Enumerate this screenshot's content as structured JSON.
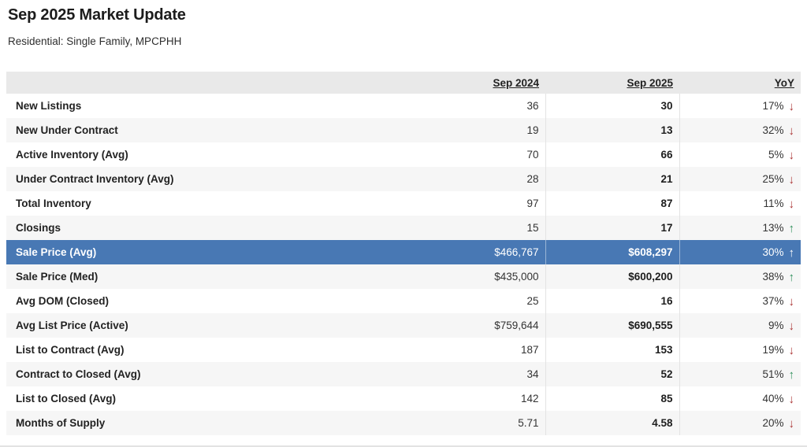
{
  "page": {
    "title": "Sep 2025 Market Update",
    "subtitle": "Residential: Single Family, MPCPHH"
  },
  "icons": {
    "up": "↑",
    "down": "↓"
  },
  "colors": {
    "highlight_row": "#4878b4",
    "up_arrow": "#2f8f5b",
    "down_arrow": "#aa3333",
    "header_bg": "#e9e9e9",
    "alt_row_bg": "#f6f6f6"
  },
  "table": {
    "header": {
      "metric": "",
      "sep_2024": "Sep 2024",
      "sep_2025": "Sep 2025",
      "yoy": "YoY"
    },
    "rows": [
      {
        "label": "New Listings",
        "sep_2024": "36",
        "sep_2025": "30",
        "yoy": "17%",
        "trend": "down",
        "highlighted": false
      },
      {
        "label": "New Under Contract",
        "sep_2024": "19",
        "sep_2025": "13",
        "yoy": "32%",
        "trend": "down",
        "highlighted": false
      },
      {
        "label": "Active Inventory (Avg)",
        "sep_2024": "70",
        "sep_2025": "66",
        "yoy": "5%",
        "trend": "down",
        "highlighted": false
      },
      {
        "label": "Under Contract Inventory (Avg)",
        "sep_2024": "28",
        "sep_2025": "21",
        "yoy": "25%",
        "trend": "down",
        "highlighted": false
      },
      {
        "label": "Total Inventory",
        "sep_2024": "97",
        "sep_2025": "87",
        "yoy": "11%",
        "trend": "down",
        "highlighted": false
      },
      {
        "label": "Closings",
        "sep_2024": "15",
        "sep_2025": "17",
        "yoy": "13%",
        "trend": "up",
        "highlighted": false
      },
      {
        "label": "Sale Price (Avg)",
        "sep_2024": "$466,767",
        "sep_2025": "$608,297",
        "yoy": "30%",
        "trend": "up",
        "highlighted": true
      },
      {
        "label": "Sale Price (Med)",
        "sep_2024": "$435,000",
        "sep_2025": "$600,200",
        "yoy": "38%",
        "trend": "up",
        "highlighted": false
      },
      {
        "label": "Avg DOM (Closed)",
        "sep_2024": "25",
        "sep_2025": "16",
        "yoy": "37%",
        "trend": "down",
        "highlighted": false
      },
      {
        "label": "Avg List Price (Active)",
        "sep_2024": "$759,644",
        "sep_2025": "$690,555",
        "yoy": "9%",
        "trend": "down",
        "highlighted": false
      },
      {
        "label": "List to Contract (Avg)",
        "sep_2024": "187",
        "sep_2025": "153",
        "yoy": "19%",
        "trend": "down",
        "highlighted": false
      },
      {
        "label": "Contract to Closed (Avg)",
        "sep_2024": "34",
        "sep_2025": "52",
        "yoy": "51%",
        "trend": "up",
        "highlighted": false
      },
      {
        "label": "List to Closed (Avg)",
        "sep_2024": "142",
        "sep_2025": "85",
        "yoy": "40%",
        "trend": "down",
        "highlighted": false
      },
      {
        "label": "Months of Supply",
        "sep_2024": "5.71",
        "sep_2025": "4.58",
        "yoy": "20%",
        "trend": "down",
        "highlighted": false
      }
    ]
  }
}
